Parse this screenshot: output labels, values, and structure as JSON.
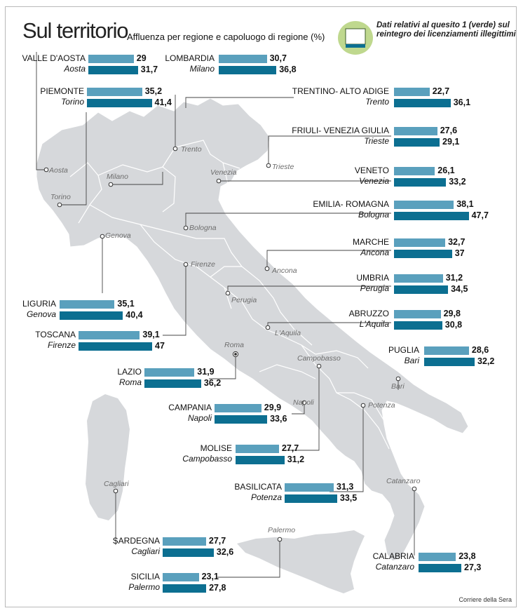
{
  "title": "Sul territorio",
  "subtitle": "Affluenza per regione e capoluogo di regione (%)",
  "legend_text": "Dati relativi al quesito 1 (verde) sul reintegro dei licenziamenti illegittimi",
  "credit": "Corriere della Sera",
  "colors": {
    "region_bar": "#5aa0bd",
    "capital_bar": "#0c6f91",
    "map": "#d6d8db"
  },
  "regions": [
    {
      "region": "VALLE D'AOSTA",
      "capital": "Aosta",
      "region_value": "29",
      "capital_value": "31,7"
    },
    {
      "region": "LOMBARDIA",
      "capital": "Milano",
      "region_value": "30,7",
      "capital_value": "36,8"
    },
    {
      "region": "PIEMONTE",
      "capital": "Torino",
      "region_value": "35,2",
      "capital_value": "41,4"
    },
    {
      "region": "TRENTINO- ALTO ADIGE",
      "capital": "Trento",
      "region_value": "22,7",
      "capital_value": "36,1"
    },
    {
      "region": "FRIULI- VENEZIA GIULIA",
      "capital": "Trieste",
      "region_value": "27,6",
      "capital_value": "29,1"
    },
    {
      "region": "VENETO",
      "capital": "Venezia",
      "region_value": "26,1",
      "capital_value": "33,2"
    },
    {
      "region": "EMILIA- ROMAGNA",
      "capital": "Bologna",
      "region_value": "38,1",
      "capital_value": "47,7"
    },
    {
      "region": "MARCHE",
      "capital": "Ancona",
      "region_value": "32,7",
      "capital_value": "37"
    },
    {
      "region": "UMBRIA",
      "capital": "Perugia",
      "region_value": "31,2",
      "capital_value": "34,5"
    },
    {
      "region": "LIGURIA",
      "capital": "Genova",
      "region_value": "35,1",
      "capital_value": "40,4"
    },
    {
      "region": "ABRUZZO",
      "capital": "L'Aquila",
      "region_value": "29,8",
      "capital_value": "30,8"
    },
    {
      "region": "TOSCANA",
      "capital": "Firenze",
      "region_value": "39,1",
      "capital_value": "47"
    },
    {
      "region": "PUGLIA",
      "capital": "Bari",
      "region_value": "28,6",
      "capital_value": "32,2"
    },
    {
      "region": "LAZIO",
      "capital": "Roma",
      "region_value": "31,9",
      "capital_value": "36,2"
    },
    {
      "region": "CAMPANIA",
      "capital": "Napoli",
      "region_value": "29,9",
      "capital_value": "33,6"
    },
    {
      "region": "MOLISE",
      "capital": "Campobasso",
      "region_value": "27,7",
      "capital_value": "31,2"
    },
    {
      "region": "BASILICATA",
      "capital": "Potenza",
      "region_value": "31,3",
      "capital_value": "33,5"
    },
    {
      "region": "SARDEGNA",
      "capital": "Cagliari",
      "region_value": "27,7",
      "capital_value": "32,6"
    },
    {
      "region": "CALABRIA",
      "capital": "Catanzaro",
      "region_value": "23,8",
      "capital_value": "27,3"
    },
    {
      "region": "SICILIA",
      "capital": "Palermo",
      "region_value": "23,1",
      "capital_value": "27,8"
    }
  ],
  "map_cities": [
    "Aosta",
    "Milano",
    "Torino",
    "Trento",
    "Venezia",
    "Trieste",
    "Genova",
    "Bologna",
    "Firenze",
    "Ancona",
    "Perugia",
    "L'Aquila",
    "Roma",
    "Campobasso",
    "Bari",
    "Potenza",
    "Napoli",
    "Catanzaro",
    "Cagliari",
    "Palermo"
  ]
}
